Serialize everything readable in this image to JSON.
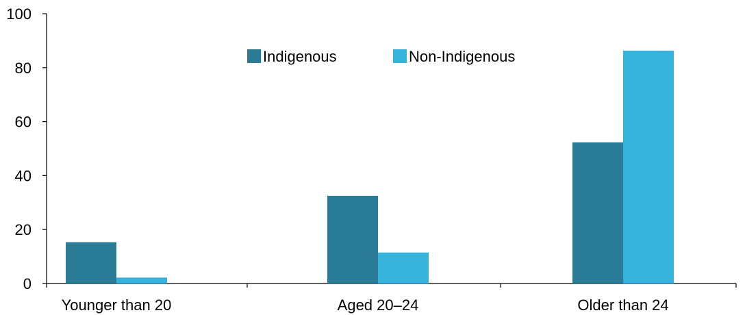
{
  "chart_data": {
    "type": "bar",
    "title": "",
    "xlabel": "",
    "ylabel": "",
    "categories": [
      "Younger than 20",
      "Aged 20–24",
      "Older than 24"
    ],
    "series": [
      {
        "name": "Indigenous",
        "values": [
          15.3,
          32.5,
          52.3
        ],
        "color": "#2a7b96"
      },
      {
        "name": "Non-Indigenous",
        "values": [
          2.2,
          11.5,
          86.3
        ],
        "color": "#35b3dd"
      }
    ],
    "ylim": [
      0,
      100
    ],
    "yticks": [
      0,
      20,
      40,
      60,
      80,
      100
    ],
    "grid": false,
    "legend_position": "top-center"
  }
}
